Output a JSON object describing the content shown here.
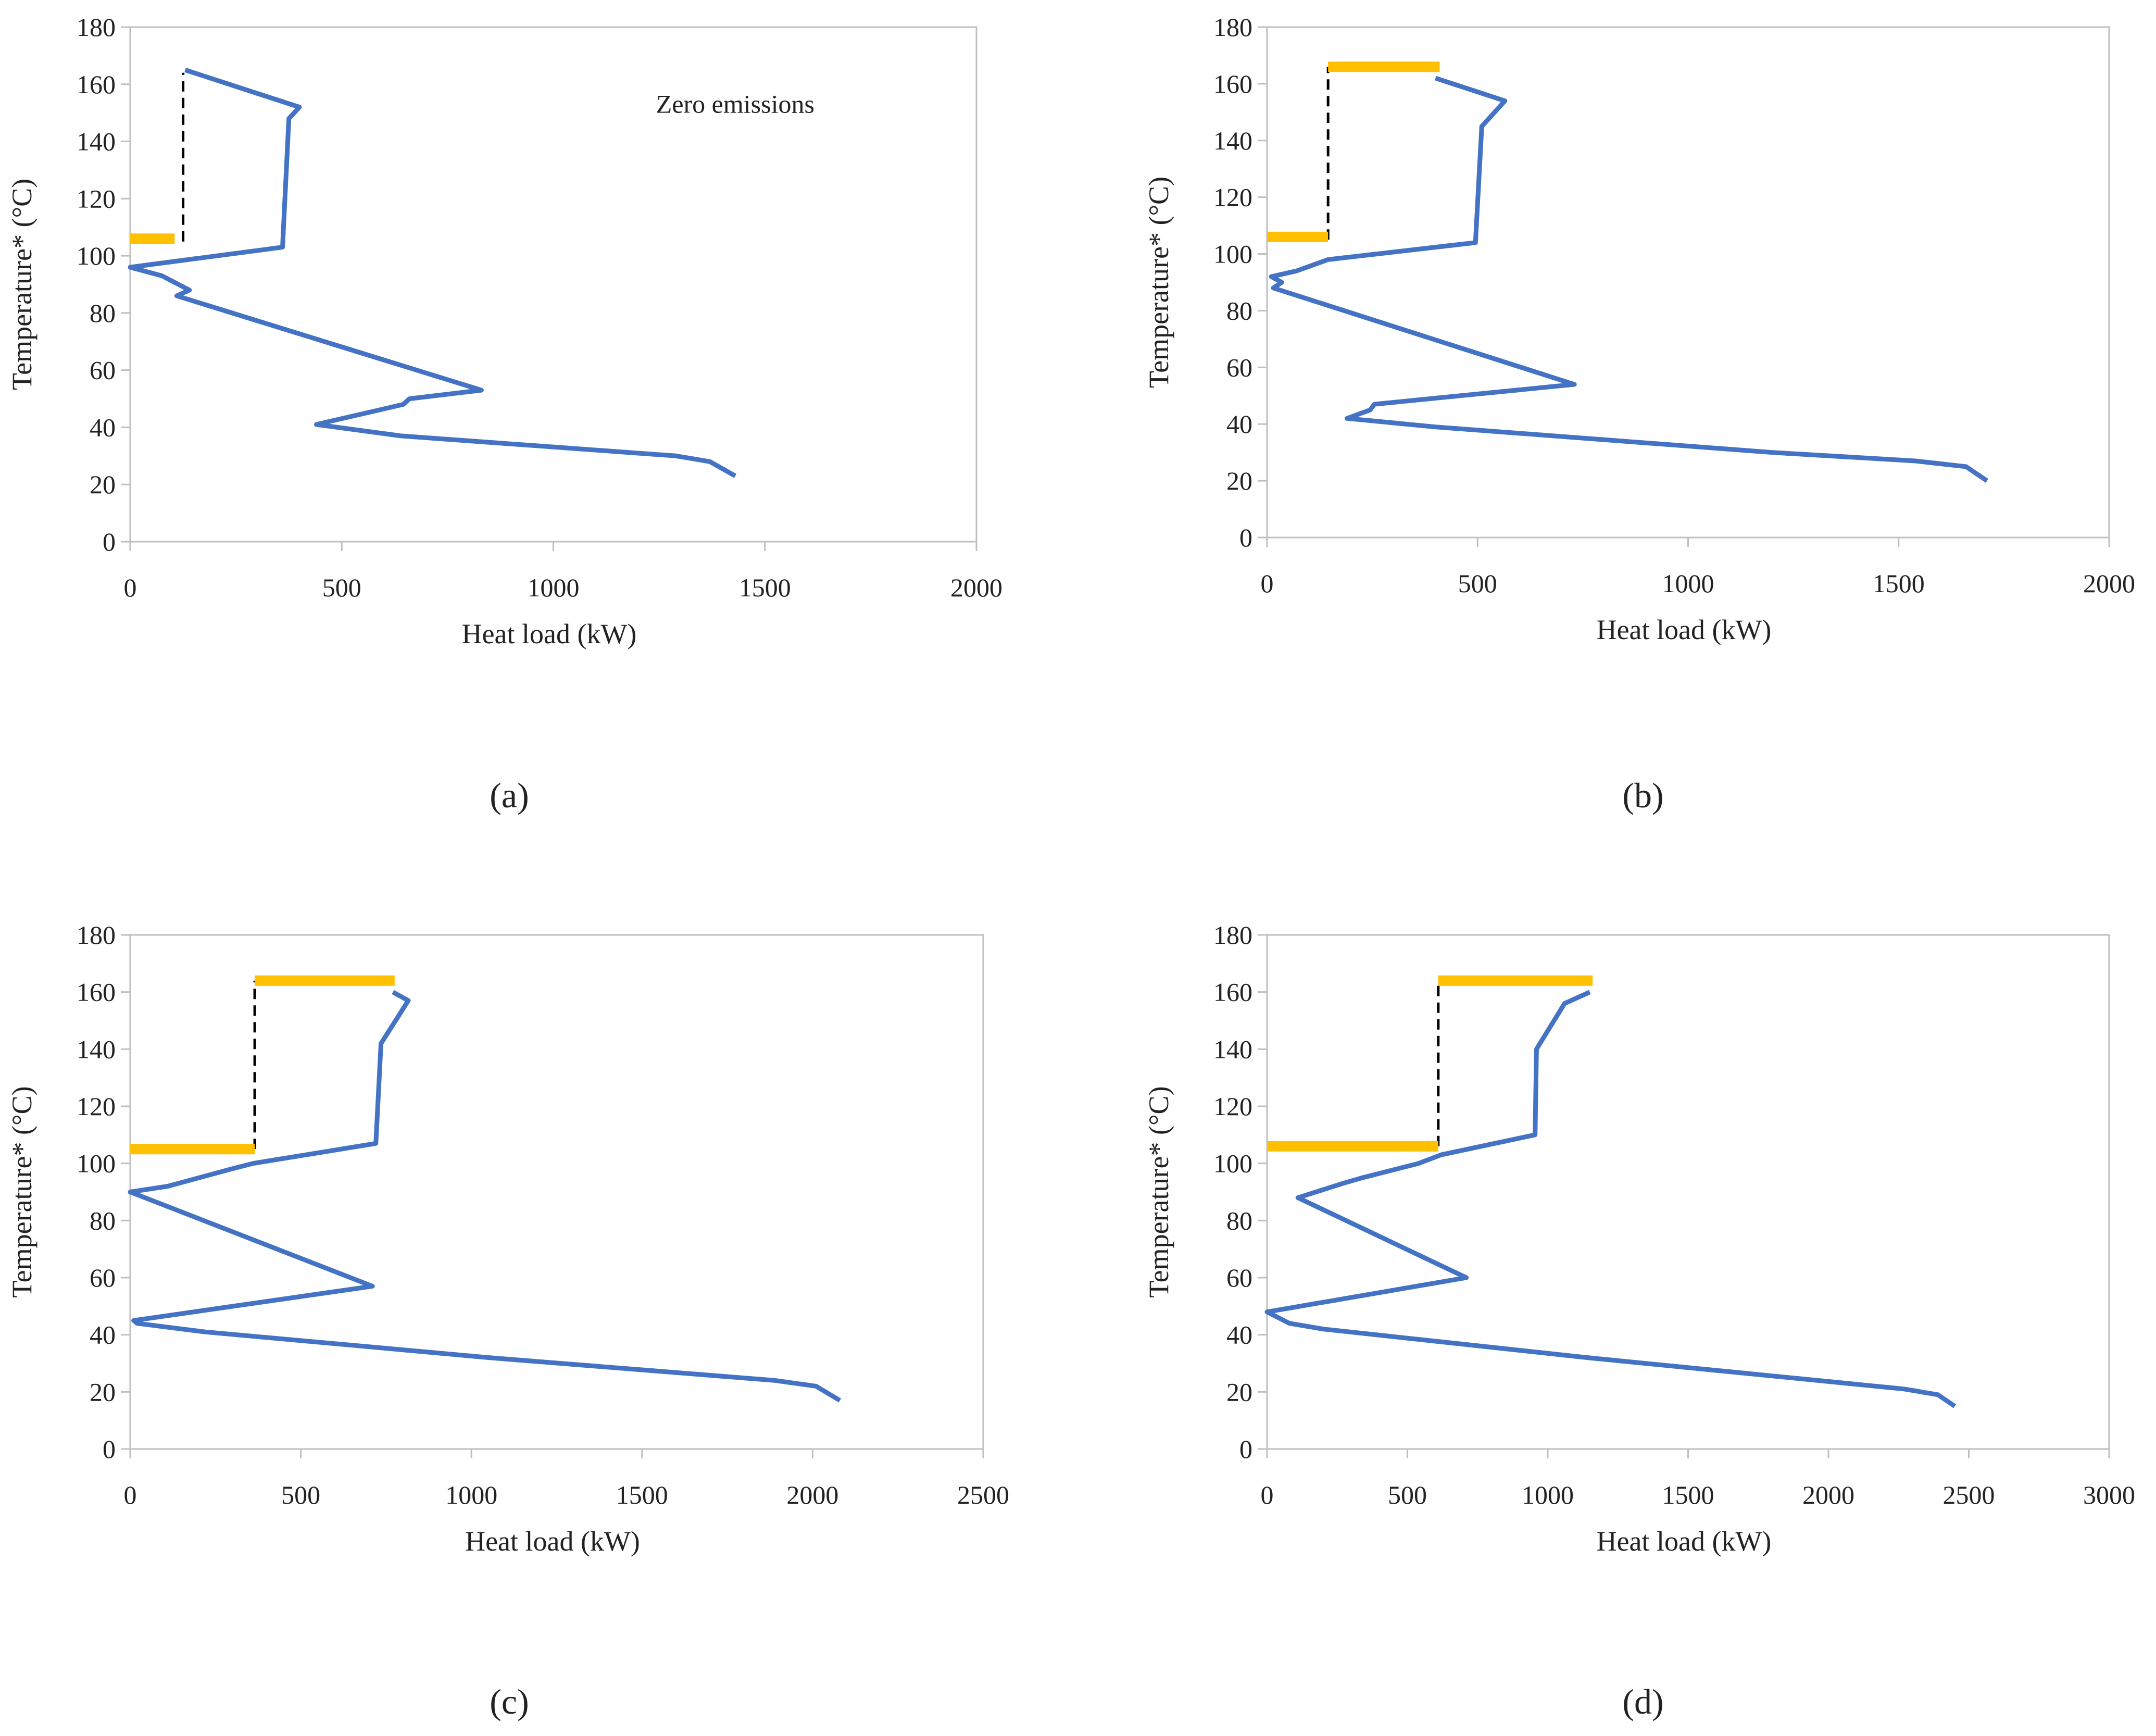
{
  "figure": {
    "panels": [
      "a",
      "b",
      "c",
      "d"
    ]
  },
  "chart_data": [
    {
      "type": "line",
      "panel": "a",
      "caption": "(a)",
      "xlabel": "Heat load (kW)",
      "ylabel": "Temperature* (°C)",
      "xlim": [
        0,
        2000
      ],
      "ylim": [
        0,
        180
      ],
      "xticks": [
        "0",
        "500",
        "1000",
        "1500",
        "2000"
      ],
      "yticks": [
        "0",
        "20",
        "40",
        "60",
        "80",
        "100",
        "120",
        "140",
        "160",
        "180"
      ],
      "annotation": "Zero emissions",
      "colors": {
        "curve": "#4472C4",
        "utility": "#FFC000",
        "pinch": "#000000",
        "axis": "#BFBFBF"
      },
      "series": [
        {
          "name": "grand composite curve",
          "points": [
            [
              130,
              165
            ],
            [
              400,
              152
            ],
            [
              375,
              148
            ],
            [
              360,
              103
            ],
            [
              0,
              96
            ],
            [
              75,
              93
            ],
            [
              140,
              88
            ],
            [
              110,
              86
            ],
            [
              830,
              53
            ],
            [
              660,
              50
            ],
            [
              645,
              48
            ],
            [
              440,
              41
            ],
            [
              640,
              37
            ],
            [
              1290,
              30
            ],
            [
              1370,
              28
            ],
            [
              1430,
              23
            ]
          ]
        },
        {
          "name": "pinch",
          "points": [
            [
              125,
              105
            ],
            [
              125,
              164
            ]
          ]
        },
        {
          "name": "utility-low",
          "points": [
            [
              0,
              106
            ],
            [
              105,
              106
            ]
          ]
        }
      ]
    },
    {
      "type": "line",
      "panel": "b",
      "caption": "(b)",
      "xlabel": "Heat load (kW)",
      "ylabel": "Temperature* (°C)",
      "xlim": [
        0,
        2000
      ],
      "ylim": [
        0,
        180
      ],
      "xticks": [
        "0",
        "500",
        "1000",
        "1500",
        "2000"
      ],
      "yticks": [
        "0",
        "20",
        "40",
        "60",
        "80",
        "100",
        "120",
        "140",
        "160",
        "180"
      ],
      "colors": {
        "curve": "#4472C4",
        "utility": "#FFC000",
        "pinch": "#000000",
        "axis": "#BFBFBF"
      },
      "series": [
        {
          "name": "grand composite curve",
          "points": [
            [
              400,
              162
            ],
            [
              565,
              154
            ],
            [
              510,
              145
            ],
            [
              495,
              104
            ],
            [
              145,
              98
            ],
            [
              70,
              94
            ],
            [
              10,
              92
            ],
            [
              35,
              90
            ],
            [
              15,
              88
            ],
            [
              730,
              54
            ],
            [
              255,
              47
            ],
            [
              245,
              45
            ],
            [
              190,
              42
            ],
            [
              400,
              39
            ],
            [
              1200,
              30
            ],
            [
              1540,
              27
            ],
            [
              1660,
              25
            ],
            [
              1710,
              20
            ]
          ]
        },
        {
          "name": "pinch",
          "points": [
            [
              145,
              105
            ],
            [
              145,
              166
            ]
          ]
        },
        {
          "name": "utility-low",
          "points": [
            [
              0,
              106
            ],
            [
              145,
              106
            ]
          ]
        },
        {
          "name": "utility-high",
          "points": [
            [
              145,
              166
            ],
            [
              410,
              166
            ]
          ]
        }
      ]
    },
    {
      "type": "line",
      "panel": "c",
      "caption": "(c)",
      "xlabel": "Heat load (kW)",
      "ylabel": "Temperature* (°C)",
      "xlim": [
        0,
        2500
      ],
      "ylim": [
        0,
        180
      ],
      "xticks": [
        "0",
        "500",
        "1000",
        "1500",
        "2000",
        "2500"
      ],
      "yticks": [
        "0",
        "20",
        "40",
        "60",
        "80",
        "100",
        "120",
        "140",
        "160",
        "180"
      ],
      "colors": {
        "curve": "#4472C4",
        "utility": "#FFC000",
        "pinch": "#000000",
        "axis": "#BFBFBF"
      },
      "series": [
        {
          "name": "grand composite curve",
          "points": [
            [
              770,
              160
            ],
            [
              815,
              157
            ],
            [
              735,
              142
            ],
            [
              720,
              107
            ],
            [
              360,
              100
            ],
            [
              295,
              98
            ],
            [
              110,
              92
            ],
            [
              0,
              90
            ],
            [
              710,
              57
            ],
            [
              10,
              45
            ],
            [
              20,
              44
            ],
            [
              220,
              41
            ],
            [
              1050,
              32
            ],
            [
              1890,
              24
            ],
            [
              2010,
              22
            ],
            [
              2080,
              17
            ]
          ]
        },
        {
          "name": "pinch",
          "points": [
            [
              365,
              105
            ],
            [
              365,
              164
            ]
          ]
        },
        {
          "name": "utility-low",
          "points": [
            [
              0,
              105
            ],
            [
              365,
              105
            ]
          ]
        },
        {
          "name": "utility-high",
          "points": [
            [
              365,
              164
            ],
            [
              775,
              164
            ]
          ]
        }
      ]
    },
    {
      "type": "line",
      "panel": "d",
      "caption": "(d)",
      "xlabel": "Heat load (kW)",
      "ylabel": "Temperature* (°C)",
      "xlim": [
        0,
        3000
      ],
      "ylim": [
        0,
        180
      ],
      "xticks": [
        "0",
        "500",
        "1000",
        "1500",
        "2000",
        "2500",
        "3000"
      ],
      "yticks": [
        "0",
        "20",
        "40",
        "60",
        "80",
        "100",
        "120",
        "140",
        "160",
        "180"
      ],
      "colors": {
        "curve": "#4472C4",
        "utility": "#FFC000",
        "pinch": "#000000",
        "axis": "#BFBFBF"
      },
      "series": [
        {
          "name": "grand composite curve",
          "points": [
            [
              1150,
              160
            ],
            [
              1060,
              156
            ],
            [
              960,
              140
            ],
            [
              955,
              110
            ],
            [
              620,
              103
            ],
            [
              540,
              100
            ],
            [
              340,
              95
            ],
            [
              270,
              93
            ],
            [
              110,
              88
            ],
            [
              710,
              60
            ],
            [
              0,
              48
            ],
            [
              80,
              44
            ],
            [
              200,
              42
            ],
            [
              1140,
              32
            ],
            [
              2270,
              21
            ],
            [
              2390,
              19
            ],
            [
              2450,
              15
            ]
          ]
        },
        {
          "name": "pinch",
          "points": [
            [
              610,
              106
            ],
            [
              610,
              164
            ]
          ]
        },
        {
          "name": "utility-low",
          "points": [
            [
              0,
              106
            ],
            [
              610,
              106
            ]
          ]
        },
        {
          "name": "utility-high",
          "points": [
            [
              610,
              164
            ],
            [
              1160,
              164
            ]
          ]
        }
      ]
    }
  ]
}
